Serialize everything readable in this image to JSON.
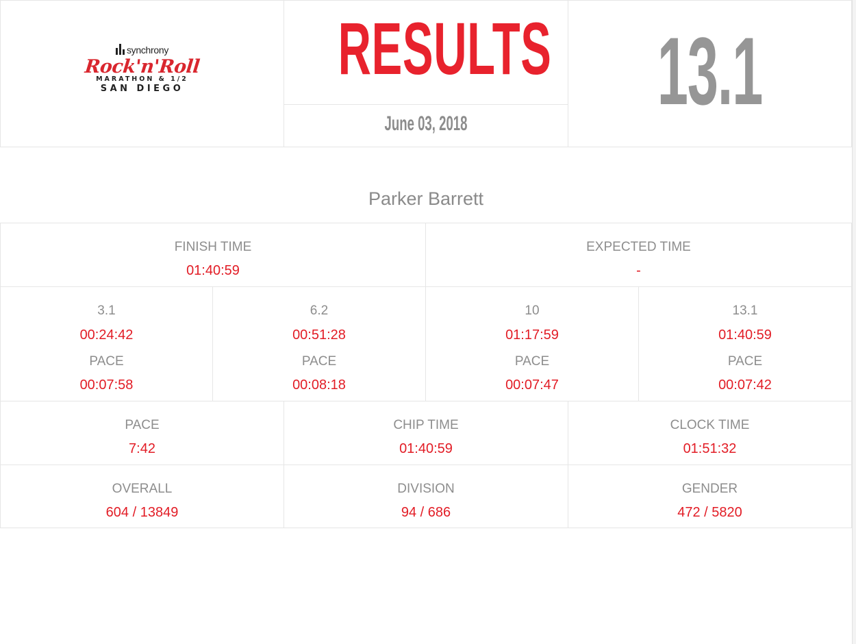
{
  "header": {
    "sponsor": "synchrony",
    "brand": {
      "name": "Rock'n'Roll",
      "line1": "MARATHON & 1/2",
      "line2": "SAN DIEGO"
    },
    "title": "RESULTS",
    "date": "June 03, 2018",
    "distance": "13.1"
  },
  "runner": {
    "name": "Parker Barrett"
  },
  "summary": {
    "finish_label": "FINISH TIME",
    "finish_value": "01:40:59",
    "expected_label": "EXPECTED TIME",
    "expected_value": "-"
  },
  "splits": [
    {
      "distance": "3.1",
      "time": "00:24:42",
      "pace_label": "PACE",
      "pace": "00:07:58"
    },
    {
      "distance": "6.2",
      "time": "00:51:28",
      "pace_label": "PACE",
      "pace": "00:08:18"
    },
    {
      "distance": "10",
      "time": "01:17:59",
      "pace_label": "PACE",
      "pace": "00:07:47"
    },
    {
      "distance": "13.1",
      "time": "01:40:59",
      "pace_label": "PACE",
      "pace": "00:07:42"
    }
  ],
  "times": [
    {
      "label": "PACE",
      "value": "7:42"
    },
    {
      "label": "CHIP TIME",
      "value": "01:40:59"
    },
    {
      "label": "CLOCK TIME",
      "value": "01:51:32"
    }
  ],
  "rankings": [
    {
      "label": "OVERALL",
      "value": "604 / 13849"
    },
    {
      "label": "DIVISION",
      "value": "94 / 686"
    },
    {
      "label": "GENDER",
      "value": "472 / 5820"
    }
  ],
  "colors": {
    "accent_red": "#e8222d",
    "value_red": "#e21c25",
    "label_gray": "#8d8d8d",
    "big_number_gray": "#969696",
    "border": "#e6e6e6"
  }
}
